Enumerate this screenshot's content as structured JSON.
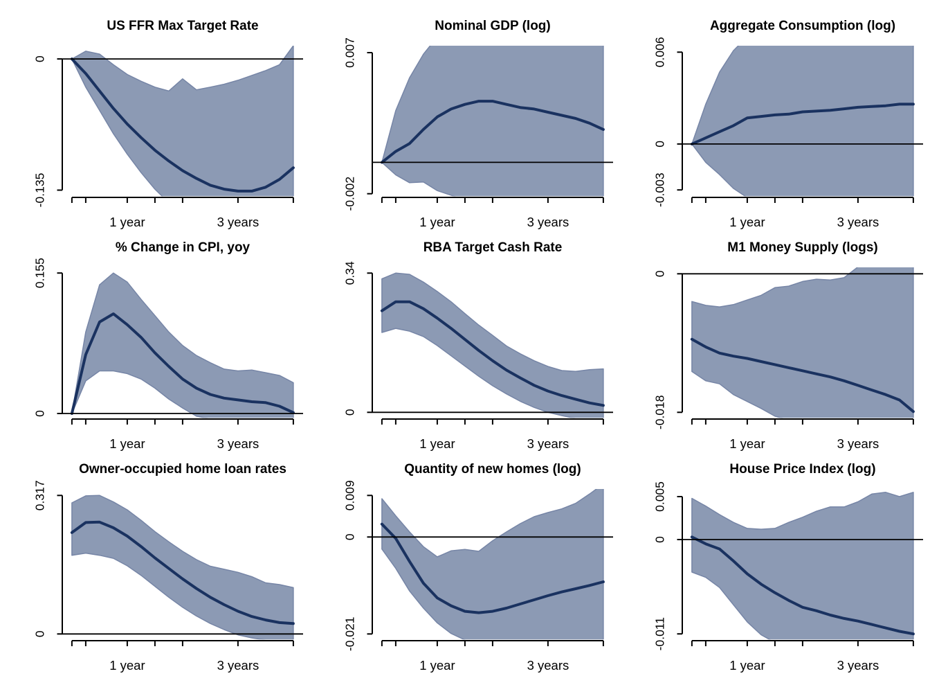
{
  "colors": {
    "irf_line": "#1a3260",
    "band_fill": "#8c9ab4",
    "band_edge": "#7685a6",
    "axis": "#000000",
    "background": "#ffffff"
  },
  "x_axis": {
    "unit": "quarters",
    "tick_quarters": [
      0,
      1,
      4,
      6,
      8,
      12,
      16
    ],
    "labels": [
      {
        "q": 4,
        "label": "1 year"
      },
      {
        "q": 12,
        "label": "3 years"
      }
    ]
  },
  "chart_data": [
    {
      "type": "line",
      "title": "US FFR Max Target Rate",
      "x": [
        0,
        1,
        2,
        3,
        4,
        5,
        6,
        7,
        8,
        9,
        10,
        11,
        12,
        13,
        14,
        15,
        16
      ],
      "ylim": [
        -0.1413,
        0.0136
      ],
      "yticks": [
        {
          "value": 0,
          "label": "0"
        },
        {
          "value": -0.135,
          "label": "-0.135"
        }
      ],
      "zero_line": true,
      "series": {
        "irf": [
          0,
          -0.015,
          -0.033,
          -0.051,
          -0.067,
          -0.081,
          -0.094,
          -0.105,
          -0.115,
          -0.123,
          -0.13,
          -0.134,
          -0.136,
          -0.136,
          -0.132,
          -0.124,
          -0.112
        ],
        "upper": [
          0,
          0.008,
          0.005,
          -0.006,
          -0.016,
          -0.023,
          -0.029,
          -0.033,
          -0.0205,
          -0.0318,
          -0.029,
          -0.026,
          -0.022,
          -0.017,
          -0.012,
          -0.006,
          0.0136
        ],
        "lower": [
          0,
          -0.029,
          -0.053,
          -0.077,
          -0.098,
          -0.117,
          -0.134,
          -0.148,
          -0.15,
          -0.15,
          -0.15,
          -0.15,
          -0.15,
          -0.15,
          -0.15,
          -0.15,
          -0.145
        ]
      }
    },
    {
      "type": "line",
      "title": "Nominal GDP (log)",
      "x": [
        0,
        1,
        2,
        3,
        4,
        5,
        6,
        7,
        8,
        9,
        10,
        11,
        12,
        13,
        14,
        15,
        16
      ],
      "ylim": [
        -0.00216,
        0.00744
      ],
      "yticks": [
        {
          "value": 0.007,
          "label": "0.007"
        },
        {
          "value": -0.002,
          "label": "-0.002"
        }
      ],
      "zero_line": true,
      "series": {
        "irf": [
          0,
          0.0007,
          0.0012,
          0.0021,
          0.0029,
          0.0034,
          0.0037,
          0.0039,
          0.0039,
          0.0037,
          0.0035,
          0.0034,
          0.0032,
          0.003,
          0.0028,
          0.0025,
          0.0021
        ],
        "upper": [
          0,
          0.0033,
          0.0054,
          0.0069,
          0.008,
          0.008,
          0.008,
          0.008,
          0.008,
          0.008,
          0.008,
          0.008,
          0.008,
          0.008,
          0.008,
          0.008,
          0.008
        ],
        "lower": [
          0,
          -0.0008,
          -0.0013,
          -0.00125,
          -0.0018,
          -0.0021,
          -0.0024,
          -0.0024,
          -0.0024,
          -0.0024,
          -0.0024,
          -0.0024,
          -0.0024,
          -0.0024,
          -0.0024,
          -0.0024,
          -0.0024
        ]
      }
    },
    {
      "type": "line",
      "title": "Aggregate Consumption (log)",
      "x": [
        0,
        1,
        2,
        3,
        4,
        5,
        6,
        7,
        8,
        9,
        10,
        11,
        12,
        13,
        14,
        15,
        16
      ],
      "ylim": [
        -0.00341,
        0.00642
      ],
      "yticks": [
        {
          "value": 0.006,
          "label": "0.006"
        },
        {
          "value": 0,
          "label": "0"
        },
        {
          "value": -0.003,
          "label": "-0.003"
        }
      ],
      "zero_line": true,
      "series": {
        "irf": [
          0,
          0.0004,
          0.0008,
          0.0012,
          0.0017,
          0.0018,
          0.0019,
          0.00195,
          0.0021,
          0.00215,
          0.0022,
          0.0023,
          0.0024,
          0.00245,
          0.0025,
          0.0026,
          0.0026
        ],
        "upper": [
          0,
          0.0026,
          0.0047,
          0.0061,
          0.007,
          0.007,
          0.007,
          0.007,
          0.007,
          0.007,
          0.007,
          0.007,
          0.007,
          0.007,
          0.007,
          0.007,
          0.007
        ],
        "lower": [
          0,
          -0.0012,
          -0.002,
          -0.0029,
          -0.0035,
          -0.0039,
          -0.0039,
          -0.0039,
          -0.0039,
          -0.0039,
          -0.0039,
          -0.0039,
          -0.0039,
          -0.0039,
          -0.0039,
          -0.0039,
          -0.0039
        ]
      }
    },
    {
      "type": "line",
      "title": "% Change in CPI, yoy",
      "x": [
        0,
        1,
        2,
        3,
        4,
        5,
        6,
        7,
        8,
        9,
        10,
        11,
        12,
        13,
        14,
        15,
        16
      ],
      "ylim": [
        -0.00482,
        0.1613
      ],
      "yticks": [
        {
          "value": 0.155,
          "label": "0.155"
        },
        {
          "value": 0,
          "label": "0"
        }
      ],
      "zero_line": true,
      "series": {
        "irf": [
          0,
          0.065,
          0.101,
          0.11,
          0.098,
          0.084,
          0.067,
          0.052,
          0.038,
          0.028,
          0.021,
          0.017,
          0.015,
          0.013,
          0.012,
          0.008,
          0.001
        ],
        "upper": [
          0,
          0.09,
          0.142,
          0.155,
          0.145,
          0.126,
          0.108,
          0.09,
          0.075,
          0.064,
          0.056,
          0.049,
          0.047,
          0.048,
          0.045,
          0.042,
          0.034
        ],
        "lower": [
          0,
          0.036,
          0.047,
          0.047,
          0.044,
          0.038,
          0.028,
          0.016,
          0.006,
          -0.003,
          -0.006,
          -0.006,
          -0.006,
          -0.006,
          -0.006,
          -0.006,
          -0.006
        ]
      }
    },
    {
      "type": "line",
      "title": "RBA Target Cash Rate",
      "x": [
        0,
        1,
        2,
        3,
        4,
        5,
        6,
        7,
        8,
        9,
        10,
        11,
        12,
        13,
        14,
        15,
        16
      ],
      "ylim": [
        -0.0135,
        0.354
      ],
      "yticks": [
        {
          "value": 0.34,
          "label": "0.34"
        },
        {
          "value": 0,
          "label": "0"
        }
      ],
      "zero_line": true,
      "series": {
        "irf": [
          0.248,
          0.27,
          0.27,
          0.253,
          0.23,
          0.205,
          0.178,
          0.151,
          0.126,
          0.103,
          0.084,
          0.066,
          0.052,
          0.041,
          0.032,
          0.023,
          0.017
        ],
        "upper": [
          0.326,
          0.34,
          0.337,
          0.318,
          0.295,
          0.27,
          0.241,
          0.213,
          0.188,
          0.162,
          0.143,
          0.126,
          0.112,
          0.102,
          0.1,
          0.104,
          0.106
        ],
        "lower": [
          0.195,
          0.205,
          0.198,
          0.185,
          0.163,
          0.138,
          0.113,
          0.088,
          0.065,
          0.045,
          0.027,
          0.012,
          0.0,
          -0.008,
          -0.015,
          -0.016,
          -0.016
        ]
      }
    },
    {
      "type": "line",
      "title": "M1 Money Supply (logs)",
      "x": [
        0,
        1,
        2,
        3,
        4,
        5,
        6,
        7,
        8,
        9,
        10,
        11,
        12,
        13,
        14,
        15,
        16
      ],
      "ylim": [
        -0.01872,
        0.00084
      ],
      "yticks": [
        {
          "value": 0,
          "label": "0"
        },
        {
          "value": -0.018,
          "label": "-0.018"
        }
      ],
      "zero_line": true,
      "series": {
        "irf": [
          -0.0085,
          -0.0095,
          -0.0103,
          -0.0107,
          -0.011,
          -0.0114,
          -0.0118,
          -0.0122,
          -0.0126,
          -0.013,
          -0.0134,
          -0.0139,
          -0.0145,
          -0.0151,
          -0.0157,
          -0.0164,
          -0.0179
        ],
        "upper": [
          -0.0036,
          -0.0041,
          -0.0043,
          -0.004,
          -0.0034,
          -0.0028,
          -0.0018,
          -0.0016,
          -0.001,
          -0.0007,
          -0.0008,
          -0.0005,
          0.0009,
          0.0009,
          0.0009,
          0.0009,
          0.0009
        ],
        "lower": [
          -0.0127,
          -0.0139,
          -0.0143,
          -0.0157,
          -0.0166,
          -0.0175,
          -0.0185,
          -0.019,
          -0.019,
          -0.019,
          -0.019,
          -0.019,
          -0.019,
          -0.019,
          -0.019,
          -0.019,
          -0.019
        ]
      }
    },
    {
      "type": "line",
      "title": "Owner-occupied home loan rates",
      "x": [
        0,
        1,
        2,
        3,
        4,
        5,
        6,
        7,
        8,
        9,
        10,
        11,
        12,
        13,
        14,
        15,
        16
      ],
      "ylim": [
        -0.01268,
        0.3317
      ],
      "yticks": [
        {
          "value": 0.317,
          "label": "0.317"
        },
        {
          "value": 0,
          "label": "0"
        }
      ],
      "zero_line": true,
      "series": {
        "irf": [
          0.232,
          0.255,
          0.256,
          0.243,
          0.224,
          0.2,
          0.174,
          0.15,
          0.126,
          0.104,
          0.084,
          0.067,
          0.052,
          0.04,
          0.032,
          0.026,
          0.024
        ],
        "upper": [
          0.3,
          0.316,
          0.317,
          0.302,
          0.284,
          0.26,
          0.234,
          0.211,
          0.189,
          0.17,
          0.155,
          0.148,
          0.141,
          0.131,
          0.117,
          0.113,
          0.106
        ],
        "lower": [
          0.18,
          0.185,
          0.18,
          0.173,
          0.156,
          0.134,
          0.109,
          0.084,
          0.061,
          0.041,
          0.024,
          0.01,
          -0.002,
          -0.009,
          -0.014,
          -0.014,
          -0.014
        ]
      }
    },
    {
      "type": "line",
      "title": "Quantity of new homes (log)",
      "x": [
        0,
        1,
        2,
        3,
        4,
        5,
        6,
        7,
        8,
        9,
        10,
        11,
        12,
        13,
        14,
        15,
        16
      ],
      "ylim": [
        -0.0222,
        0.0104
      ],
      "yticks": [
        {
          "value": 0.009,
          "label": "0.009"
        },
        {
          "value": 0,
          "label": "0"
        },
        {
          "value": -0.021,
          "label": "-0.021"
        }
      ],
      "zero_line": true,
      "series": {
        "irf": [
          0.0028,
          -0.0003,
          -0.0053,
          -0.01,
          -0.0132,
          -0.0149,
          -0.0161,
          -0.0164,
          -0.0161,
          -0.0154,
          -0.0145,
          -0.0136,
          -0.0127,
          -0.0119,
          -0.0112,
          -0.0105,
          -0.0097
        ],
        "upper": [
          0.0083,
          0.0046,
          0.0011,
          -0.0021,
          -0.0043,
          -0.003,
          -0.0027,
          -0.0031,
          -0.0008,
          0.0011,
          0.0029,
          0.0044,
          0.0053,
          0.0061,
          0.0073,
          0.0093,
          0.0115
        ],
        "lower": [
          -0.0026,
          -0.0068,
          -0.0117,
          -0.0154,
          -0.0186,
          -0.0209,
          -0.0223,
          -0.023,
          -0.023,
          -0.023,
          -0.023,
          -0.023,
          -0.023,
          -0.023,
          -0.023,
          -0.023,
          -0.023
        ]
      }
    },
    {
      "type": "line",
      "title": "House Price Index (log)",
      "x": [
        0,
        1,
        2,
        3,
        4,
        5,
        6,
        7,
        8,
        9,
        10,
        11,
        12,
        13,
        14,
        15,
        16
      ],
      "ylim": [
        -0.01165,
        0.00589
      ],
      "yticks": [
        {
          "value": 0.005,
          "label": "0.005"
        },
        {
          "value": 0,
          "label": "0"
        },
        {
          "value": -0.011,
          "label": "-0.011"
        }
      ],
      "zero_line": true,
      "series": {
        "irf": [
          0.0003,
          -0.0005,
          -0.0011,
          -0.0025,
          -0.004,
          -0.0052,
          -0.0062,
          -0.0071,
          -0.0079,
          -0.0083,
          -0.0088,
          -0.0092,
          -0.0095,
          -0.0099,
          -0.0103,
          -0.0107,
          -0.011
        ],
        "upper": [
          0.0048,
          0.0039,
          0.0029,
          0.002,
          0.0013,
          0.0012,
          0.0013,
          0.002,
          0.0026,
          0.0033,
          0.0038,
          0.0038,
          0.0044,
          0.0053,
          0.0055,
          0.005,
          0.0055
        ],
        "lower": [
          -0.0038,
          -0.0044,
          -0.0056,
          -0.0076,
          -0.0096,
          -0.0111,
          -0.012,
          -0.0122,
          -0.0122,
          -0.0122,
          -0.0122,
          -0.0122,
          -0.0122,
          -0.0122,
          -0.0122,
          -0.0122,
          -0.0122
        ]
      }
    }
  ]
}
